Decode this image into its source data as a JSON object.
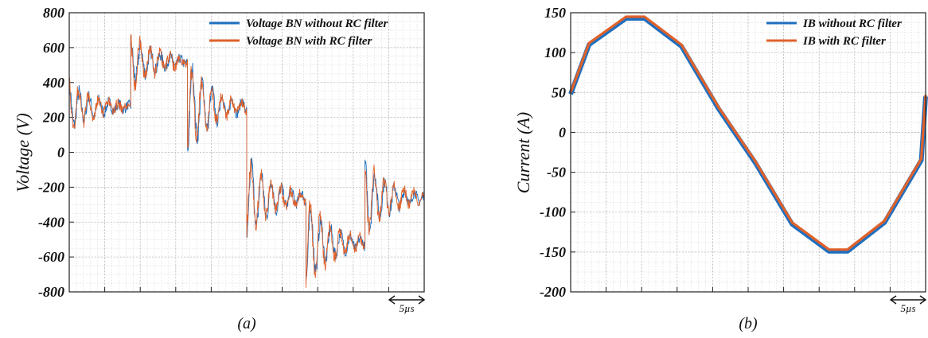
{
  "panels": [
    {
      "caption": "(a)",
      "ylabel": "Voltage (V)",
      "scale_label": "5µs"
    },
    {
      "caption": "(b)",
      "ylabel": "Current (A)",
      "scale_label": "5µs"
    }
  ],
  "chart_data": [
    {
      "type": "line",
      "title": "",
      "xlabel": "",
      "ylabel": "Voltage (V)",
      "ylim": [
        -800,
        800
      ],
      "yticks": [
        800,
        600,
        400,
        200,
        0,
        -200,
        -400,
        -600,
        -800
      ],
      "xlim": [
        0,
        25
      ],
      "x_unit": "µs",
      "grid": true,
      "legend_position": "top-right",
      "colors": {
        "without": "#1f6fbf",
        "with": "#e0612a"
      },
      "series": [
        {
          "name": "Voltage BN without RC filter",
          "color": "#1f6fbf",
          "levels": [
            {
              "x": [
                0,
                4.33
              ],
              "value": 260
            },
            {
              "x": [
                4.33,
                8.33
              ],
              "value": 520
            },
            {
              "x": [
                8.33,
                12.5
              ],
              "value": 260
            },
            {
              "x": [
                12.5,
                16.67
              ],
              "value": -260
            },
            {
              "x": [
                16.67,
                20.83
              ],
              "value": -520
            },
            {
              "x": [
                20.83,
                25
              ],
              "value": -260
            }
          ],
          "step_overshoot": [
            210,
            120,
            260,
            240,
            220,
            200
          ]
        },
        {
          "name": "Voltage BN with RC filter",
          "color": "#e0612a",
          "levels": [
            {
              "x": [
                0,
                4.33
              ],
              "value": 260
            },
            {
              "x": [
                4.33,
                8.33
              ],
              "value": 520
            },
            {
              "x": [
                8.33,
                12.5
              ],
              "value": 260
            },
            {
              "x": [
                12.5,
                16.67
              ],
              "value": -260
            },
            {
              "x": [
                16.67,
                20.83
              ],
              "value": -520
            },
            {
              "x": [
                20.83,
                25
              ],
              "value": -260
            }
          ],
          "step_overshoot": [
            250,
            160,
            240,
            220,
            260,
            210
          ]
        }
      ]
    },
    {
      "type": "line",
      "title": "",
      "xlabel": "",
      "ylabel": "Current (A)",
      "ylim": [
        -200,
        150
      ],
      "yticks": [
        150,
        100,
        50,
        0,
        -50,
        -100,
        -150,
        -200
      ],
      "xlim": [
        0,
        25
      ],
      "x_unit": "µs",
      "grid": true,
      "legend_position": "top-right",
      "series": [
        {
          "name": "IB without RC filter",
          "color": "#1f6fbf",
          "x": [
            0,
            1.3,
            3.9,
            5.2,
            7.8,
            10.4,
            13.0,
            15.6,
            18.2,
            19.5,
            22.1,
            24.7,
            25
          ],
          "y": [
            48,
            110,
            143,
            143,
            108,
            30,
            -38,
            -115,
            -149,
            -149,
            -113,
            -35,
            45
          ]
        },
        {
          "name": "IB with RC filter",
          "color": "#e0612a",
          "x": [
            0,
            1.3,
            3.9,
            5.2,
            7.8,
            10.4,
            13.0,
            15.6,
            18.2,
            19.5,
            22.1,
            24.7,
            25
          ],
          "y": [
            50,
            112,
            145,
            145,
            110,
            32,
            -36,
            -113,
            -147,
            -147,
            -111,
            -33,
            47
          ]
        }
      ]
    }
  ]
}
